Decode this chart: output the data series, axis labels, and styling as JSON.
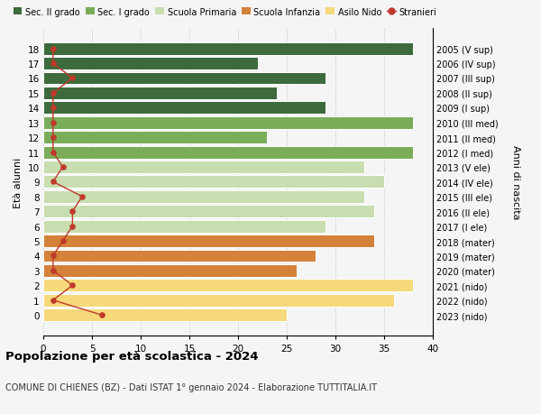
{
  "ages": [
    18,
    17,
    16,
    15,
    14,
    13,
    12,
    11,
    10,
    9,
    8,
    7,
    6,
    5,
    4,
    3,
    2,
    1,
    0
  ],
  "right_labels": [
    "2005 (V sup)",
    "2006 (IV sup)",
    "2007 (III sup)",
    "2008 (II sup)",
    "2009 (I sup)",
    "2010 (III med)",
    "2011 (II med)",
    "2012 (I med)",
    "2013 (V ele)",
    "2014 (IV ele)",
    "2015 (III ele)",
    "2016 (II ele)",
    "2017 (I ele)",
    "2018 (mater)",
    "2019 (mater)",
    "2020 (mater)",
    "2021 (nido)",
    "2022 (nido)",
    "2023 (nido)"
  ],
  "bar_values": [
    38,
    22,
    29,
    24,
    29,
    38,
    23,
    38,
    33,
    35,
    33,
    34,
    29,
    34,
    28,
    26,
    38,
    36,
    25
  ],
  "bar_colors": [
    "#3d6b3d",
    "#3d6b3d",
    "#3d6b3d",
    "#3d6b3d",
    "#3d6b3d",
    "#7aad5a",
    "#7aad5a",
    "#7aad5a",
    "#c8ddb0",
    "#c8ddb0",
    "#c8ddb0",
    "#c8ddb0",
    "#c8ddb0",
    "#d4813a",
    "#d4813a",
    "#d4813a",
    "#f5d97a",
    "#f5d97a",
    "#f5d97a"
  ],
  "legend_colors_bar": [
    "#3d6b3d",
    "#7aad5a",
    "#c8ddb0",
    "#d4813a",
    "#f5d97a"
  ],
  "stranieri_values": [
    1,
    1,
    3,
    1,
    1,
    1,
    1,
    1,
    2,
    1,
    4,
    3,
    3,
    2,
    1,
    1,
    3,
    1,
    6
  ],
  "legend_labels": [
    "Sec. II grado",
    "Sec. I grado",
    "Scuola Primaria",
    "Scuola Infanzia",
    "Asilo Nido",
    "Stranieri"
  ],
  "ylabel_left": "Età alunni",
  "ylabel_right": "Anni di nascita",
  "title": "Popolazione per età scolastica - 2024",
  "subtitle": "COMUNE DI CHIENES (BZ) - Dati ISTAT 1° gennaio 2024 - Elaborazione TUTTITALIA.IT",
  "xlim": [
    0,
    40
  ],
  "xticks": [
    0,
    5,
    10,
    15,
    20,
    25,
    30,
    35,
    40
  ],
  "background_color": "#f5f5f5",
  "stranieri_color": "#c0392b",
  "bar_height": 0.85
}
